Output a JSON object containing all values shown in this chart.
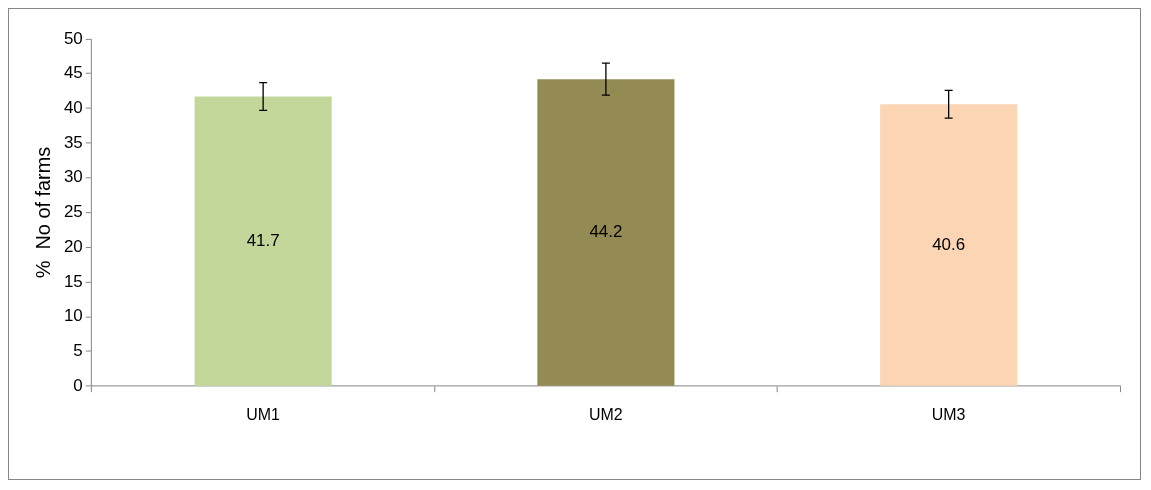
{
  "chart_data": {
    "type": "bar",
    "ylabel": "%  No of farms",
    "categories": [
      "UM1",
      "UM2",
      "UM3"
    ],
    "values": [
      41.7,
      44.2,
      40.6
    ],
    "colors": [
      "#c4d79b",
      "#948a54",
      "#fcd5b4"
    ],
    "errors": [
      2,
      2.3,
      2
    ],
    "ylim": [
      0,
      50
    ],
    "yticks": [
      0,
      5,
      10,
      15,
      20,
      25,
      30,
      35,
      40,
      45,
      50
    ],
    "grid": false,
    "legend": false,
    "data_labels": true
  }
}
